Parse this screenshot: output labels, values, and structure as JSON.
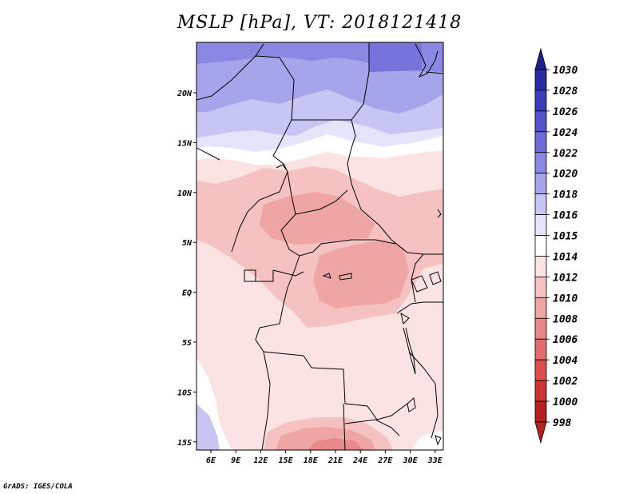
{
  "title": "MSLP [hPa], VT: 2018121418",
  "credit": "GrADS: IGES/COLA",
  "axes": {
    "x_ticks": [
      "6E",
      "9E",
      "12E",
      "15E",
      "18E",
      "21E",
      "24E",
      "27E",
      "30E",
      "33E"
    ],
    "y_ticks": [
      "20N",
      "15N",
      "10N",
      "5N",
      "EQ",
      "5S",
      "10S",
      "15S"
    ]
  },
  "colorbar": {
    "labels": [
      "1030",
      "1028",
      "1026",
      "1024",
      "1022",
      "1020",
      "1018",
      "1016",
      "1015",
      "1014",
      "1012",
      "1010",
      "1008",
      "1006",
      "1004",
      "1002",
      "1000",
      "998"
    ],
    "colors": [
      "#1f1d8f",
      "#2b2aa6",
      "#3a3abc",
      "#5452cc",
      "#6d6bd8",
      "#8a88e2",
      "#a6a5ec",
      "#c6c5f4",
      "#e4e4fa",
      "#ffffff",
      "#fbe3e3",
      "#f5c1c1",
      "#f0a5a5",
      "#e98989",
      "#e36c6c",
      "#db4e4e",
      "#cf3434",
      "#b52020"
    ]
  },
  "colors": {
    "land_default": "#fbe3e3",
    "low_1010": "#f5c1c1",
    "low_1008": "#f0a5a5",
    "neutral_1014": "#ffffff",
    "high_1015": "#e4e4fa",
    "high_1016": "#c6c5f4",
    "high_1018": "#a6a5ec",
    "high_1020": "#8a88e2"
  }
}
